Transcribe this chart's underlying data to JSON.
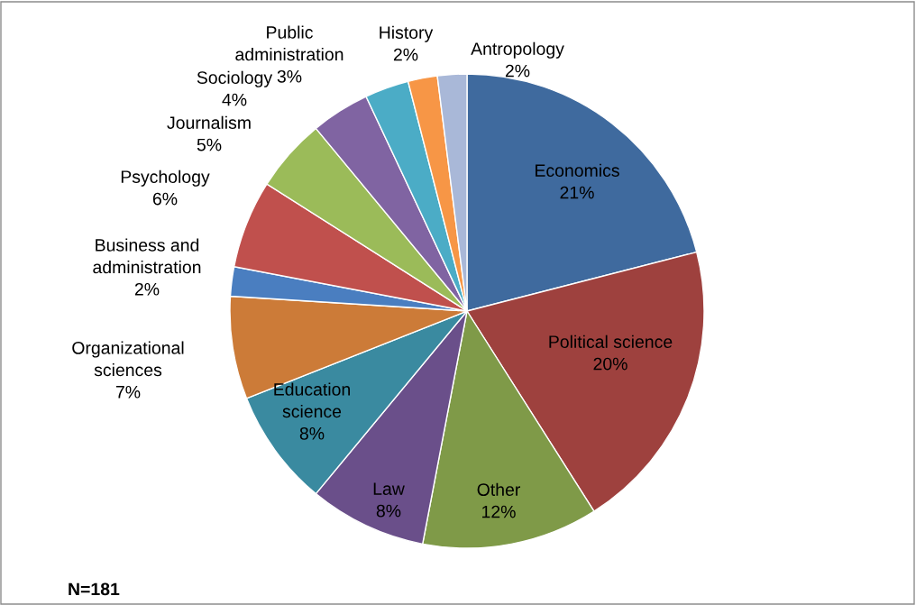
{
  "chart_data": {
    "type": "pie",
    "categories": [
      "Economics",
      "Political science",
      "Other",
      "Law",
      "Education science",
      "Organizational sciences",
      "Business and administration",
      "Psychology",
      "Journalism",
      "Sociology",
      "Public administration",
      "History",
      "Antropology"
    ],
    "values": [
      21,
      20,
      12,
      8,
      8,
      7,
      2,
      6,
      5,
      4,
      3,
      2,
      2
    ],
    "value_labels": [
      "21%",
      "20%",
      "12%",
      "8%",
      "8%",
      "7%",
      "2%",
      "6%",
      "5%",
      "4%",
      "3%",
      "2%",
      "2%"
    ],
    "colors": [
      "#3f6a9e",
      "#9e413e",
      "#7f9a48",
      "#6a4f8a",
      "#3a8aa0",
      "#cc7b38",
      "#4a7ec0",
      "#c0504d",
      "#9bbb59",
      "#8064a2",
      "#4bacc6",
      "#f79646",
      "#a9b8d8"
    ],
    "annotations": [
      "N=181"
    ]
  }
}
